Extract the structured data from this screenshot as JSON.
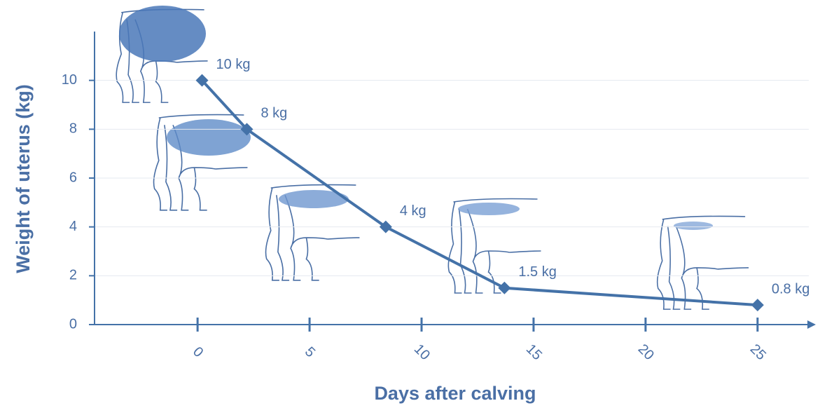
{
  "chart_data": {
    "type": "line",
    "x_label": "Days after calving",
    "y_label": "Weight of uterus (kg)",
    "x": [
      0.2,
      2.2,
      8.4,
      13.7,
      25
    ],
    "values": [
      10,
      8,
      4,
      1.5,
      0.8
    ],
    "value_labels": [
      "10 kg",
      "8 kg",
      "4 kg",
      "1.5 kg",
      "0.8 kg"
    ],
    "color": "#4472a8",
    "xlim": [
      -4.6,
      27.6
    ],
    "xticks": [
      0,
      5,
      10,
      15,
      20,
      25
    ],
    "ylim": [
      0,
      12
    ],
    "yticks": [
      0,
      2,
      4,
      6,
      8,
      10
    ],
    "grid": true
  }
}
